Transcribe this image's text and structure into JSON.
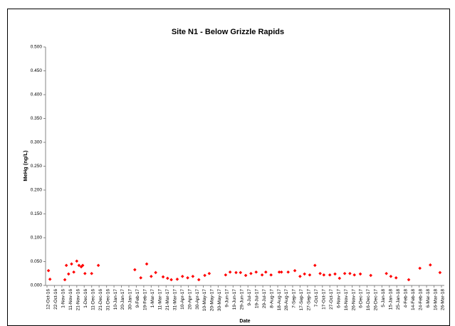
{
  "chart_data": {
    "type": "scatter",
    "title": "Site N1 -  Below Grizzle Rapids",
    "x_label": "Date",
    "y_label": "MeHg (ng/L)",
    "series": [
      {
        "color": "#ff0000",
        "x": [
          "2016-10-14",
          "2016-10-16",
          "2016-11-05",
          "2016-11-07",
          "2016-11-10",
          "2016-11-14",
          "2016-11-17",
          "2016-11-21",
          "2016-11-24",
          "2016-11-27",
          "2016-11-29",
          "2016-12-02",
          "2016-12-11",
          "2016-12-20",
          "2017-02-07",
          "2017-02-15",
          "2017-02-23",
          "2017-03-01",
          "2017-03-07",
          "2017-03-17",
          "2017-03-23",
          "2017-03-28",
          "2017-04-05",
          "2017-04-12",
          "2017-04-19",
          "2017-04-26",
          "2017-05-04",
          "2017-05-12",
          "2017-05-18",
          "2017-06-09",
          "2017-06-15",
          "2017-06-23",
          "2017-06-29",
          "2017-07-06",
          "2017-07-13",
          "2017-07-20",
          "2017-07-28",
          "2017-08-02",
          "2017-08-09",
          "2017-08-20",
          "2017-08-23",
          "2017-09-01",
          "2017-09-10",
          "2017-09-17",
          "2017-09-23",
          "2017-09-30",
          "2017-10-07",
          "2017-10-14",
          "2017-10-19",
          "2017-10-27",
          "2017-11-03",
          "2017-11-09",
          "2017-11-16",
          "2017-11-23",
          "2017-11-29",
          "2017-12-07",
          "2017-12-21",
          "2018-01-11",
          "2018-01-17",
          "2018-01-24",
          "2018-02-10",
          "2018-02-25",
          "2018-03-11",
          "2018-03-24"
        ],
        "values": [
          0.031,
          0.013,
          0.012,
          0.042,
          0.024,
          0.045,
          0.028,
          0.051,
          0.042,
          0.039,
          0.042,
          0.025,
          0.025,
          0.042,
          0.033,
          0.016,
          0.045,
          0.019,
          0.027,
          0.018,
          0.015,
          0.012,
          0.013,
          0.019,
          0.016,
          0.019,
          0.012,
          0.021,
          0.025,
          0.022,
          0.028,
          0.027,
          0.027,
          0.021,
          0.025,
          0.028,
          0.022,
          0.028,
          0.022,
          0.028,
          0.028,
          0.028,
          0.031,
          0.019,
          0.024,
          0.022,
          0.042,
          0.025,
          0.022,
          0.022,
          0.024,
          0.015,
          0.025,
          0.025,
          0.022,
          0.024,
          0.021,
          0.025,
          0.019,
          0.016,
          0.012,
          0.036,
          0.043,
          0.027
        ]
      }
    ],
    "xlim": [
      "2016-10-12",
      "2018-03-26"
    ],
    "xticks": [
      {
        "value": "2016-10-12",
        "label": "12-Oct-16"
      },
      {
        "value": "2016-10-22",
        "label": "22-Oct-16"
      },
      {
        "value": "2016-11-01",
        "label": "1-Nov-16"
      },
      {
        "value": "2016-11-11",
        "label": "11-Nov-16"
      },
      {
        "value": "2016-11-21",
        "label": "21-Nov-16"
      },
      {
        "value": "2016-12-01",
        "label": "1-Dec-16"
      },
      {
        "value": "2016-12-11",
        "label": "11-Dec-16"
      },
      {
        "value": "2016-12-21",
        "label": "21-Dec-16"
      },
      {
        "value": "2016-12-31",
        "label": "31-Dec-16"
      },
      {
        "value": "2017-01-10",
        "label": "10-Jan-17"
      },
      {
        "value": "2017-01-20",
        "label": "20-Jan-17"
      },
      {
        "value": "2017-01-30",
        "label": "30-Jan-17"
      },
      {
        "value": "2017-02-09",
        "label": "9-Feb-17"
      },
      {
        "value": "2017-02-19",
        "label": "19-Feb-17"
      },
      {
        "value": "2017-03-01",
        "label": "1-Mar-17"
      },
      {
        "value": "2017-03-11",
        "label": "11-Mar-17"
      },
      {
        "value": "2017-03-21",
        "label": "21-Mar-17"
      },
      {
        "value": "2017-03-31",
        "label": "31-Mar-17"
      },
      {
        "value": "2017-04-10",
        "label": "10-Apr-17"
      },
      {
        "value": "2017-04-20",
        "label": "20-Apr-17"
      },
      {
        "value": "2017-04-30",
        "label": "30-Apr-17"
      },
      {
        "value": "2017-05-10",
        "label": "10-May-17"
      },
      {
        "value": "2017-05-20",
        "label": "20-May-17"
      },
      {
        "value": "2017-05-30",
        "label": "30-May-17"
      },
      {
        "value": "2017-06-09",
        "label": "9-Jun-17"
      },
      {
        "value": "2017-06-19",
        "label": "19-Jun-17"
      },
      {
        "value": "2017-06-29",
        "label": "29-Jun-17"
      },
      {
        "value": "2017-07-09",
        "label": "9-Jul-17"
      },
      {
        "value": "2017-07-19",
        "label": "19-Jul-17"
      },
      {
        "value": "2017-07-29",
        "label": "29-Jul-17"
      },
      {
        "value": "2017-08-08",
        "label": "8-Aug-17"
      },
      {
        "value": "2017-08-18",
        "label": "18-Aug-17"
      },
      {
        "value": "2017-08-28",
        "label": "28-Aug-17"
      },
      {
        "value": "2017-09-07",
        "label": "7-Sep-17"
      },
      {
        "value": "2017-09-17",
        "label": "17-Sep-17"
      },
      {
        "value": "2017-09-27",
        "label": "27-Sep-17"
      },
      {
        "value": "2017-10-07",
        "label": "7-Oct-17"
      },
      {
        "value": "2017-10-17",
        "label": "17-Oct-17"
      },
      {
        "value": "2017-10-27",
        "label": "27-Oct-17"
      },
      {
        "value": "2017-11-06",
        "label": "6-Nov-17"
      },
      {
        "value": "2017-11-16",
        "label": "16-Nov-17"
      },
      {
        "value": "2017-11-26",
        "label": "26-Nov-17"
      },
      {
        "value": "2017-12-06",
        "label": "6-Dec-17"
      },
      {
        "value": "2017-12-16",
        "label": "16-Dec-17"
      },
      {
        "value": "2017-12-26",
        "label": "26-Dec-17"
      },
      {
        "value": "2018-01-05",
        "label": "5-Jan-18"
      },
      {
        "value": "2018-01-15",
        "label": "15-Jan-18"
      },
      {
        "value": "2018-01-25",
        "label": "25-Jan-18"
      },
      {
        "value": "2018-02-04",
        "label": "4-Feb-18"
      },
      {
        "value": "2018-02-14",
        "label": "14-Feb-18"
      },
      {
        "value": "2018-02-24",
        "label": "24-Feb-18"
      },
      {
        "value": "2018-03-06",
        "label": "6-Mar-18"
      },
      {
        "value": "2018-03-16",
        "label": "16-Mar-18"
      },
      {
        "value": "2018-03-26",
        "label": "26-Mar-18"
      }
    ],
    "ylim": [
      0,
      0.5
    ],
    "yticks": [
      {
        "value": 0,
        "label": "0.000"
      },
      {
        "value": 0.05,
        "label": "0.050"
      },
      {
        "value": 0.1,
        "label": "0.100"
      },
      {
        "value": 0.15,
        "label": "0.150"
      },
      {
        "value": 0.2,
        "label": "0.200"
      },
      {
        "value": 0.25,
        "label": "0.250"
      },
      {
        "value": 0.3,
        "label": "0.300"
      },
      {
        "value": 0.35,
        "label": "0.350"
      },
      {
        "value": 0.4,
        "label": "0.400"
      },
      {
        "value": 0.45,
        "label": "0.450"
      },
      {
        "value": 0.5,
        "label": "0.500"
      }
    ],
    "grid": false
  }
}
